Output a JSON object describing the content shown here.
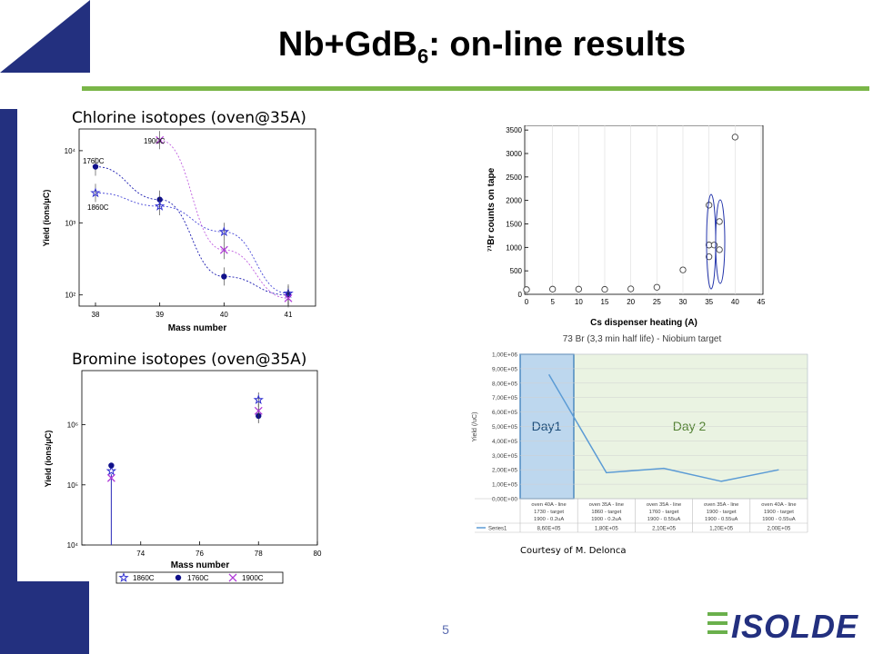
{
  "slide": {
    "title_main": "Nb+GdB",
    "title_sub": "6",
    "title_rest": ": on-line results",
    "page_number": "5",
    "courtesy": "Courtesy of M. Delonca",
    "logo_text": "ISOLDE",
    "colors": {
      "accent_green": "#7ab648",
      "brand_blue": "#23307f",
      "plot_blue": "#1a1ab0",
      "plot_violet": "#b03bd8",
      "excel_blue": "#5b9bd5"
    }
  },
  "chlorine": {
    "label": "Chlorine isotopes (oven@35A)",
    "annot_1900": "1900C",
    "annot_1760": "1760C",
    "annot_1860": "1860C"
  },
  "bromine": {
    "label": "Bromine isotopes (oven@35A)"
  },
  "chart_data": [
    {
      "type": "scatter",
      "xlabel": "Mass number",
      "ylabel": "Yield (ions/μC)",
      "x_ticks": [
        "38",
        "39",
        "40",
        "41"
      ],
      "y_log": true,
      "ylim": [
        70,
        20000
      ],
      "series": [
        {
          "name": "1760C",
          "marker": "filled-circle",
          "x": [
            38,
            39,
            40,
            41
          ],
          "y": [
            6000,
            2100,
            180,
            100
          ]
        },
        {
          "name": "1860C",
          "marker": "star",
          "x": [
            38,
            39,
            40,
            41
          ],
          "y": [
            2600,
            1700,
            750,
            105
          ]
        },
        {
          "name": "1900C",
          "marker": "cross",
          "x": [
            39,
            40,
            41
          ],
          "y": [
            14000,
            420,
            90
          ]
        }
      ]
    },
    {
      "type": "scatter",
      "xlabel": "Cs dispenser heating (A)",
      "ylabel": "⁷¹Br counts on tape",
      "x_ticks": [
        "0",
        "5",
        "10",
        "15",
        "20",
        "25",
        "30",
        "35",
        "40",
        "45"
      ],
      "y_ticks": [
        "0",
        "500",
        "1000",
        "1500",
        "2000",
        "2500",
        "3000",
        "3500"
      ],
      "xlim": [
        0,
        45
      ],
      "ylim": [
        0,
        3600
      ],
      "x": [
        0,
        5,
        10,
        15,
        20,
        25,
        30,
        35,
        35,
        35,
        35,
        36,
        37,
        37,
        40
      ],
      "y": [
        100,
        110,
        110,
        105,
        115,
        150,
        520,
        1050,
        1900,
        800,
        1050,
        1050,
        1550,
        950,
        3350
      ]
    },
    {
      "type": "scatter",
      "xlabel": "Mass number",
      "ylabel": "Yield (ions/μC)",
      "x_ticks": [
        "74",
        "76",
        "78",
        "80"
      ],
      "y_log": true,
      "legend": [
        "1860C",
        "1760C",
        "1900C"
      ],
      "series": [
        {
          "name": "1860C",
          "marker": "star",
          "x": [
            73,
            78
          ],
          "y": [
            170000,
            2600000
          ]
        },
        {
          "name": "1760C",
          "marker": "filled-circle",
          "x": [
            73,
            78
          ],
          "y": [
            210000,
            1400000
          ]
        },
        {
          "name": "1900C",
          "marker": "cross",
          "x": [
            73,
            78
          ],
          "y": [
            130000,
            1700000
          ]
        }
      ]
    },
    {
      "type": "line",
      "title": "73 Br (3,3 min half life) - Niobium target",
      "ylabel": "Yield (/uC)",
      "y_ticks": [
        "0,00E+00",
        "1,00E+05",
        "2,00E+05",
        "3,00E+05",
        "4,00E+05",
        "5,00E+05",
        "6,00E+05",
        "7,00E+05",
        "8,00E+05",
        "9,00E+05",
        "1,00E+06"
      ],
      "ylim": [
        0,
        1000000
      ],
      "regions": [
        "Day1",
        "Day 2"
      ],
      "categories": [
        [
          "oven 40A - line",
          "1730 - target",
          "1900 - 0.2uA"
        ],
        [
          "oven 35A - line",
          "1860 - target",
          "1900 - 0.2uA"
        ],
        [
          "oven 35A - line",
          "1760 - target",
          "1900 - 0.55uA"
        ],
        [
          "oven 35A - line",
          "1900 - target",
          "1900 - 0.55uA"
        ],
        [
          "oven 40A - line",
          "1900 - target",
          "1900 - 0.55uA"
        ]
      ],
      "series": [
        {
          "name": "Series1",
          "values": [
            860000,
            180000,
            210000,
            120000,
            200000
          ],
          "labels": [
            "8,60E+05",
            "1,80E+05",
            "2,10E+05",
            "1,20E+05",
            "2,00E+05"
          ]
        }
      ]
    }
  ]
}
